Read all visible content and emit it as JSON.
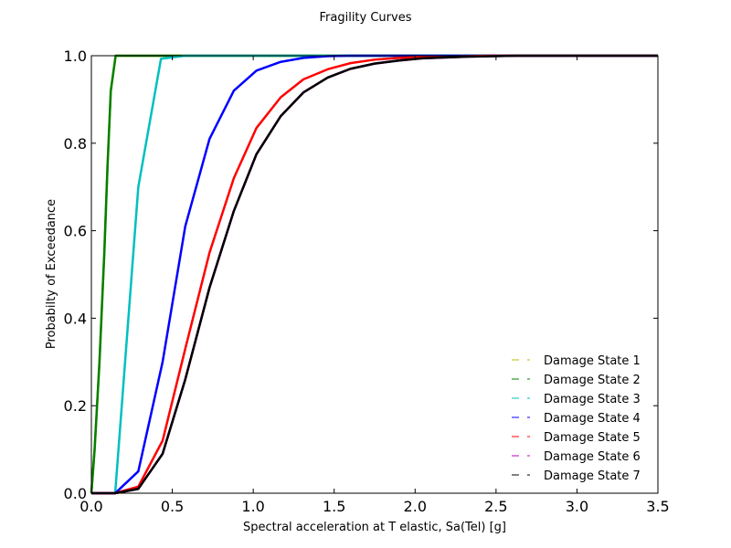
{
  "chart_data": {
    "type": "line",
    "title": "Fragility Curves",
    "xlabel": "Spectral acceleration at T elastic, Sa(Tel) [g]",
    "ylabel": "Probabilty of Exceedance",
    "xlim": [
      0,
      3.5
    ],
    "ylim": [
      0,
      1
    ],
    "xticks": [
      "0.0",
      "0.5",
      "1.0",
      "1.5",
      "2.0",
      "2.5",
      "3.0",
      "3.5"
    ],
    "yticks": [
      "0.0",
      "0.2",
      "0.4",
      "0.6",
      "0.8",
      "1.0"
    ],
    "grid": false,
    "legend_position": "lower-right",
    "legend": [
      "Damage State 1",
      "Damage State 2",
      "Damage State 3",
      "Damage State 4",
      "Damage State 5",
      "Damage State 6",
      "Damage State 7"
    ],
    "legend_colors": [
      "#bfbf00",
      "#008000",
      "#00bfbf",
      "#0000ff",
      "#ff0000",
      "#bf00bf",
      "#000000"
    ],
    "series": [
      {
        "color": "#bfbf00",
        "x": [
          0.0,
          0.02,
          0.05,
          0.08,
          0.1,
          0.12,
          0.15,
          0.5,
          1.0,
          3.5
        ],
        "y": [
          0.0,
          0.1,
          0.3,
          0.55,
          0.75,
          0.92,
          1.0,
          1.0,
          1.0,
          1.0
        ]
      },
      {
        "color": "#008000",
        "x": [
          0.0,
          0.02,
          0.05,
          0.08,
          0.1,
          0.12,
          0.15,
          0.5,
          1.0,
          3.5
        ],
        "y": [
          0.0,
          0.1,
          0.3,
          0.55,
          0.75,
          0.92,
          1.0,
          1.0,
          1.0,
          1.0
        ]
      },
      {
        "color": "#00bfbf",
        "x": [
          0.0,
          0.147,
          0.29,
          0.43,
          0.58,
          0.73,
          1.0,
          3.5
        ],
        "y": [
          0.0,
          0.0,
          0.7,
          0.993,
          1.0,
          1.0,
          1.0,
          1.0
        ]
      },
      {
        "color": "#0000ff",
        "x": [
          0.0,
          0.147,
          0.29,
          0.44,
          0.58,
          0.73,
          0.88,
          1.02,
          1.17,
          1.31,
          1.46,
          1.6,
          2.0,
          3.5
        ],
        "y": [
          0.0,
          0.0,
          0.05,
          0.3,
          0.61,
          0.81,
          0.92,
          0.966,
          0.986,
          0.995,
          0.999,
          1.0,
          1.0,
          1.0
        ]
      },
      {
        "color": "#ff0000",
        "x": [
          0.0,
          0.147,
          0.29,
          0.44,
          0.58,
          0.73,
          0.88,
          1.02,
          1.17,
          1.31,
          1.46,
          1.6,
          1.75,
          1.9,
          2.04,
          2.19,
          2.33,
          2.48,
          2.63,
          3.5
        ],
        "y": [
          0.0,
          0.0,
          0.015,
          0.12,
          0.33,
          0.55,
          0.72,
          0.835,
          0.905,
          0.946,
          0.969,
          0.983,
          0.991,
          0.995,
          0.997,
          0.998,
          0.999,
          1.0,
          1.0,
          1.0
        ]
      },
      {
        "color": "#bf00bf",
        "x": [
          0.0,
          0.147,
          0.29,
          0.44,
          0.58,
          0.73,
          0.88,
          1.02,
          1.17,
          1.31,
          1.46,
          1.6,
          1.75,
          1.9,
          2.04,
          2.19,
          2.33,
          2.48,
          2.63,
          3.5
        ],
        "y": [
          0.0,
          0.0,
          0.01,
          0.09,
          0.26,
          0.47,
          0.645,
          0.775,
          0.862,
          0.916,
          0.95,
          0.97,
          0.982,
          0.989,
          0.994,
          0.996,
          0.998,
          0.999,
          1.0,
          1.0
        ]
      },
      {
        "color": "#000000",
        "x": [
          0.0,
          0.147,
          0.29,
          0.44,
          0.58,
          0.73,
          0.88,
          1.02,
          1.17,
          1.31,
          1.46,
          1.6,
          1.75,
          1.9,
          2.04,
          2.19,
          2.33,
          2.48,
          2.63,
          3.5
        ],
        "y": [
          0.0,
          0.0,
          0.01,
          0.09,
          0.26,
          0.47,
          0.645,
          0.775,
          0.862,
          0.916,
          0.95,
          0.97,
          0.982,
          0.989,
          0.994,
          0.996,
          0.998,
          0.999,
          1.0,
          1.0
        ]
      }
    ]
  }
}
